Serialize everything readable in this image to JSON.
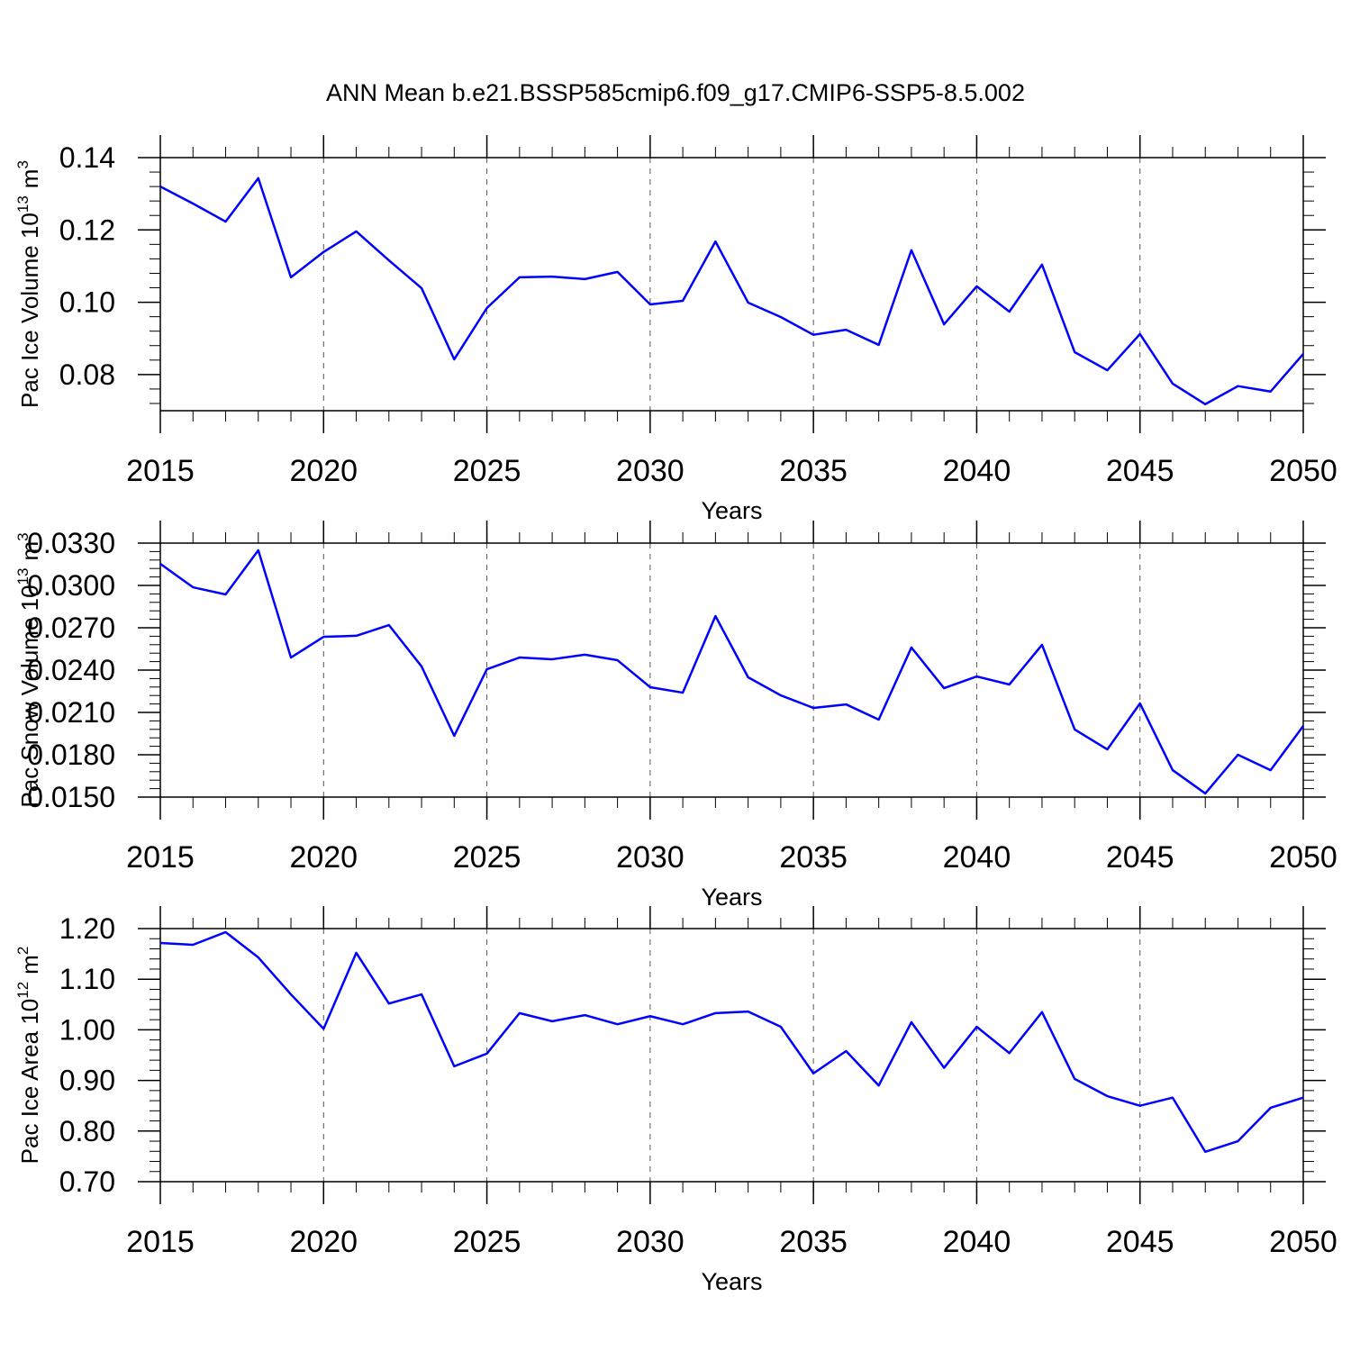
{
  "chart_data": [
    {
      "type": "line",
      "title": "ANN Mean b.e21.BSSP585cmip6.f09_g17.CMIP6-SSP5-8.5.002",
      "xlabel": "Years",
      "ylabel": {
        "text": "Pac Ice Volume 10",
        "exponent": "13",
        "unit": "m",
        "unit_exponent": "3"
      },
      "x": [
        2015,
        2016,
        2017,
        2018,
        2019,
        2020,
        2021,
        2022,
        2023,
        2024,
        2025,
        2026,
        2027,
        2028,
        2029,
        2030,
        2031,
        2032,
        2033,
        2034,
        2035,
        2036,
        2037,
        2038,
        2039,
        2040,
        2041,
        2042,
        2043,
        2044,
        2045,
        2046,
        2047,
        2048,
        2049,
        2050
      ],
      "series": [
        {
          "color": "#0000ff",
          "values": [
            0.132,
            0.1273,
            0.1223,
            0.1343,
            0.1069,
            0.1139,
            0.1196,
            0.1116,
            0.1039,
            0.0842,
            0.0984,
            0.1069,
            0.1071,
            0.1064,
            0.1084,
            0.0994,
            0.1004,
            0.1168,
            0.0999,
            0.0959,
            0.091,
            0.0924,
            0.0882,
            0.1144,
            0.0939,
            0.1044,
            0.0974,
            0.1104,
            0.0862,
            0.0812,
            0.0912,
            0.0775,
            0.0718,
            0.0768,
            0.0753,
            0.0857
          ]
        }
      ],
      "xlim": [
        2015,
        2050
      ],
      "xticks": [
        2015,
        2020,
        2025,
        2030,
        2035,
        2040,
        2045,
        2050
      ],
      "ylim": [
        0.07,
        0.14
      ],
      "yticks": [
        0.08,
        {
          "value": 0.1,
          "label": "0.10"
        },
        0.12,
        0.14
      ],
      "grid": "x"
    },
    {
      "type": "line",
      "xlabel": "Years",
      "ylabel": {
        "text": "Pac Snow Volume 10",
        "exponent": "13",
        "unit": "m",
        "unit_exponent": "3"
      },
      "x": [
        2015,
        2016,
        2017,
        2018,
        2019,
        2020,
        2021,
        2022,
        2023,
        2024,
        2025,
        2026,
        2027,
        2028,
        2029,
        2030,
        2031,
        2032,
        2033,
        2034,
        2035,
        2036,
        2037,
        2038,
        2039,
        2040,
        2041,
        2042,
        2043,
        2044,
        2045,
        2046,
        2047,
        2048,
        2049,
        2050
      ],
      "series": [
        {
          "color": "#0000ff",
          "values": [
            0.03153,
            0.02987,
            0.02936,
            0.03249,
            0.02489,
            0.02636,
            0.02643,
            0.02719,
            0.02426,
            0.01934,
            0.02406,
            0.02489,
            0.02477,
            0.02509,
            0.0247,
            0.02279,
            0.0224,
            0.02783,
            0.02349,
            0.02221,
            0.02132,
            0.02157,
            0.02049,
            0.0256,
            0.02272,
            0.02355,
            0.02298,
            0.02579,
            0.01979,
            0.01838,
            0.02164,
            0.01691,
            0.01526,
            0.018,
            0.01691,
            0.02004
          ]
        }
      ],
      "xlim": [
        2015,
        2050
      ],
      "xticks": [
        2015,
        2020,
        2025,
        2030,
        2035,
        2040,
        2045,
        2050
      ],
      "ylim": [
        0.015,
        0.033
      ],
      "yticks": [
        {
          "value": 0.015,
          "label": "0.0150"
        },
        {
          "value": 0.018,
          "label": "0.0180"
        },
        {
          "value": 0.021,
          "label": "0.0210"
        },
        {
          "value": 0.024,
          "label": "0.0240"
        },
        {
          "value": 0.027,
          "label": "0.0270"
        },
        {
          "value": 0.03,
          "label": "0.0300"
        },
        {
          "value": 0.033,
          "label": "0.0330"
        }
      ],
      "grid": "x"
    },
    {
      "type": "line",
      "xlabel": "Years",
      "ylabel": {
        "text": "Pac Ice Area 10",
        "exponent": "12",
        "unit": "m",
        "unit_exponent": "2"
      },
      "x": [
        2015,
        2016,
        2017,
        2018,
        2019,
        2020,
        2021,
        2022,
        2023,
        2024,
        2025,
        2026,
        2027,
        2028,
        2029,
        2030,
        2031,
        2032,
        2033,
        2034,
        2035,
        2036,
        2037,
        2038,
        2039,
        2040,
        2041,
        2042,
        2043,
        2044,
        2045,
        2046,
        2047,
        2048,
        2049,
        2050
      ],
      "series": [
        {
          "color": "#0000ff",
          "values": [
            1.1715,
            1.168,
            1.193,
            1.143,
            1.07,
            1.002,
            1.152,
            1.052,
            1.07,
            0.928,
            0.953,
            1.033,
            1.017,
            1.029,
            1.011,
            1.027,
            1.011,
            1.033,
            1.036,
            1.006,
            0.914,
            0.958,
            0.89,
            1.015,
            0.925,
            1.006,
            0.954,
            1.035,
            0.903,
            0.869,
            0.85,
            0.866,
            0.759,
            0.78,
            0.846,
            0.866
          ]
        }
      ],
      "xlim": [
        2015,
        2050
      ],
      "xticks": [
        2015,
        2020,
        2025,
        2030,
        2035,
        2040,
        2045,
        2050
      ],
      "ylim": [
        0.7,
        1.2
      ],
      "yticks": [
        {
          "value": 0.7,
          "label": "0.70"
        },
        {
          "value": 0.8,
          "label": "0.80"
        },
        {
          "value": 0.9,
          "label": "0.90"
        },
        {
          "value": 1.0,
          "label": "1.00"
        },
        {
          "value": 1.1,
          "label": "1.10"
        },
        {
          "value": 1.2,
          "label": "1.20"
        }
      ],
      "grid": "x"
    }
  ]
}
